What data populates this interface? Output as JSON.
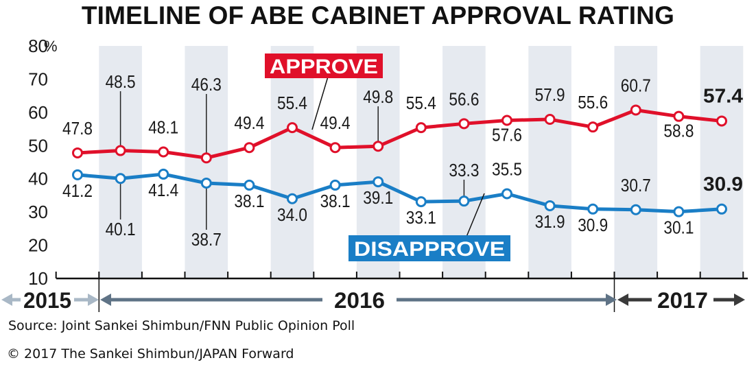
{
  "title": "TIMELINE OF ABE CABINET APPROVAL RATING",
  "source": "Source: Joint Sankei Shimbun/FNN Public Opinion Poll",
  "copyright": "© 2017 The Sankei Shimbun/JAPAN Forward",
  "colors": {
    "approve": "#e0102a",
    "disapprove": "#1a7ec6",
    "band": "#e6eaf0",
    "arrow_2015": "#a9b8c6",
    "arrow_2016": "#5f7386",
    "arrow_2017": "#3a3a3a"
  },
  "chart_data": {
    "type": "line",
    "ylim": [
      10,
      80
    ],
    "y_ticks": [
      "10",
      "20",
      "30",
      "40",
      "50",
      "60",
      "70",
      "80"
    ],
    "y_unit": "%",
    "grid": false,
    "series": [
      {
        "name": "APPROVE",
        "values": [
          47.8,
          48.5,
          48.1,
          46.3,
          49.4,
          55.4,
          49.4,
          49.8,
          55.4,
          56.6,
          57.6,
          57.9,
          55.6,
          60.7,
          58.8,
          57.4
        ],
        "labels": [
          "47.8",
          "48.5",
          "48.1",
          "46.3",
          "49.4",
          "55.4",
          "49.4",
          "49.8",
          "55.4",
          "56.6",
          "57.6",
          "57.9",
          "55.6",
          "60.7",
          "58.8",
          "57.4"
        ]
      },
      {
        "name": "DISAPPROVE",
        "values": [
          41.2,
          40.1,
          41.4,
          38.7,
          38.1,
          34.0,
          38.1,
          39.1,
          33.1,
          33.3,
          35.5,
          31.9,
          30.9,
          30.7,
          30.1,
          30.9
        ],
        "labels": [
          "41.2",
          "40.1",
          "41.4",
          "38.7",
          "38.1",
          "34.0",
          "38.1",
          "39.1",
          "33.1",
          "33.3",
          "35.5",
          "31.9",
          "30.9",
          "30.7",
          "30.1",
          "30.9"
        ]
      }
    ],
    "years": [
      "2015",
      "2016",
      "2017"
    ]
  }
}
